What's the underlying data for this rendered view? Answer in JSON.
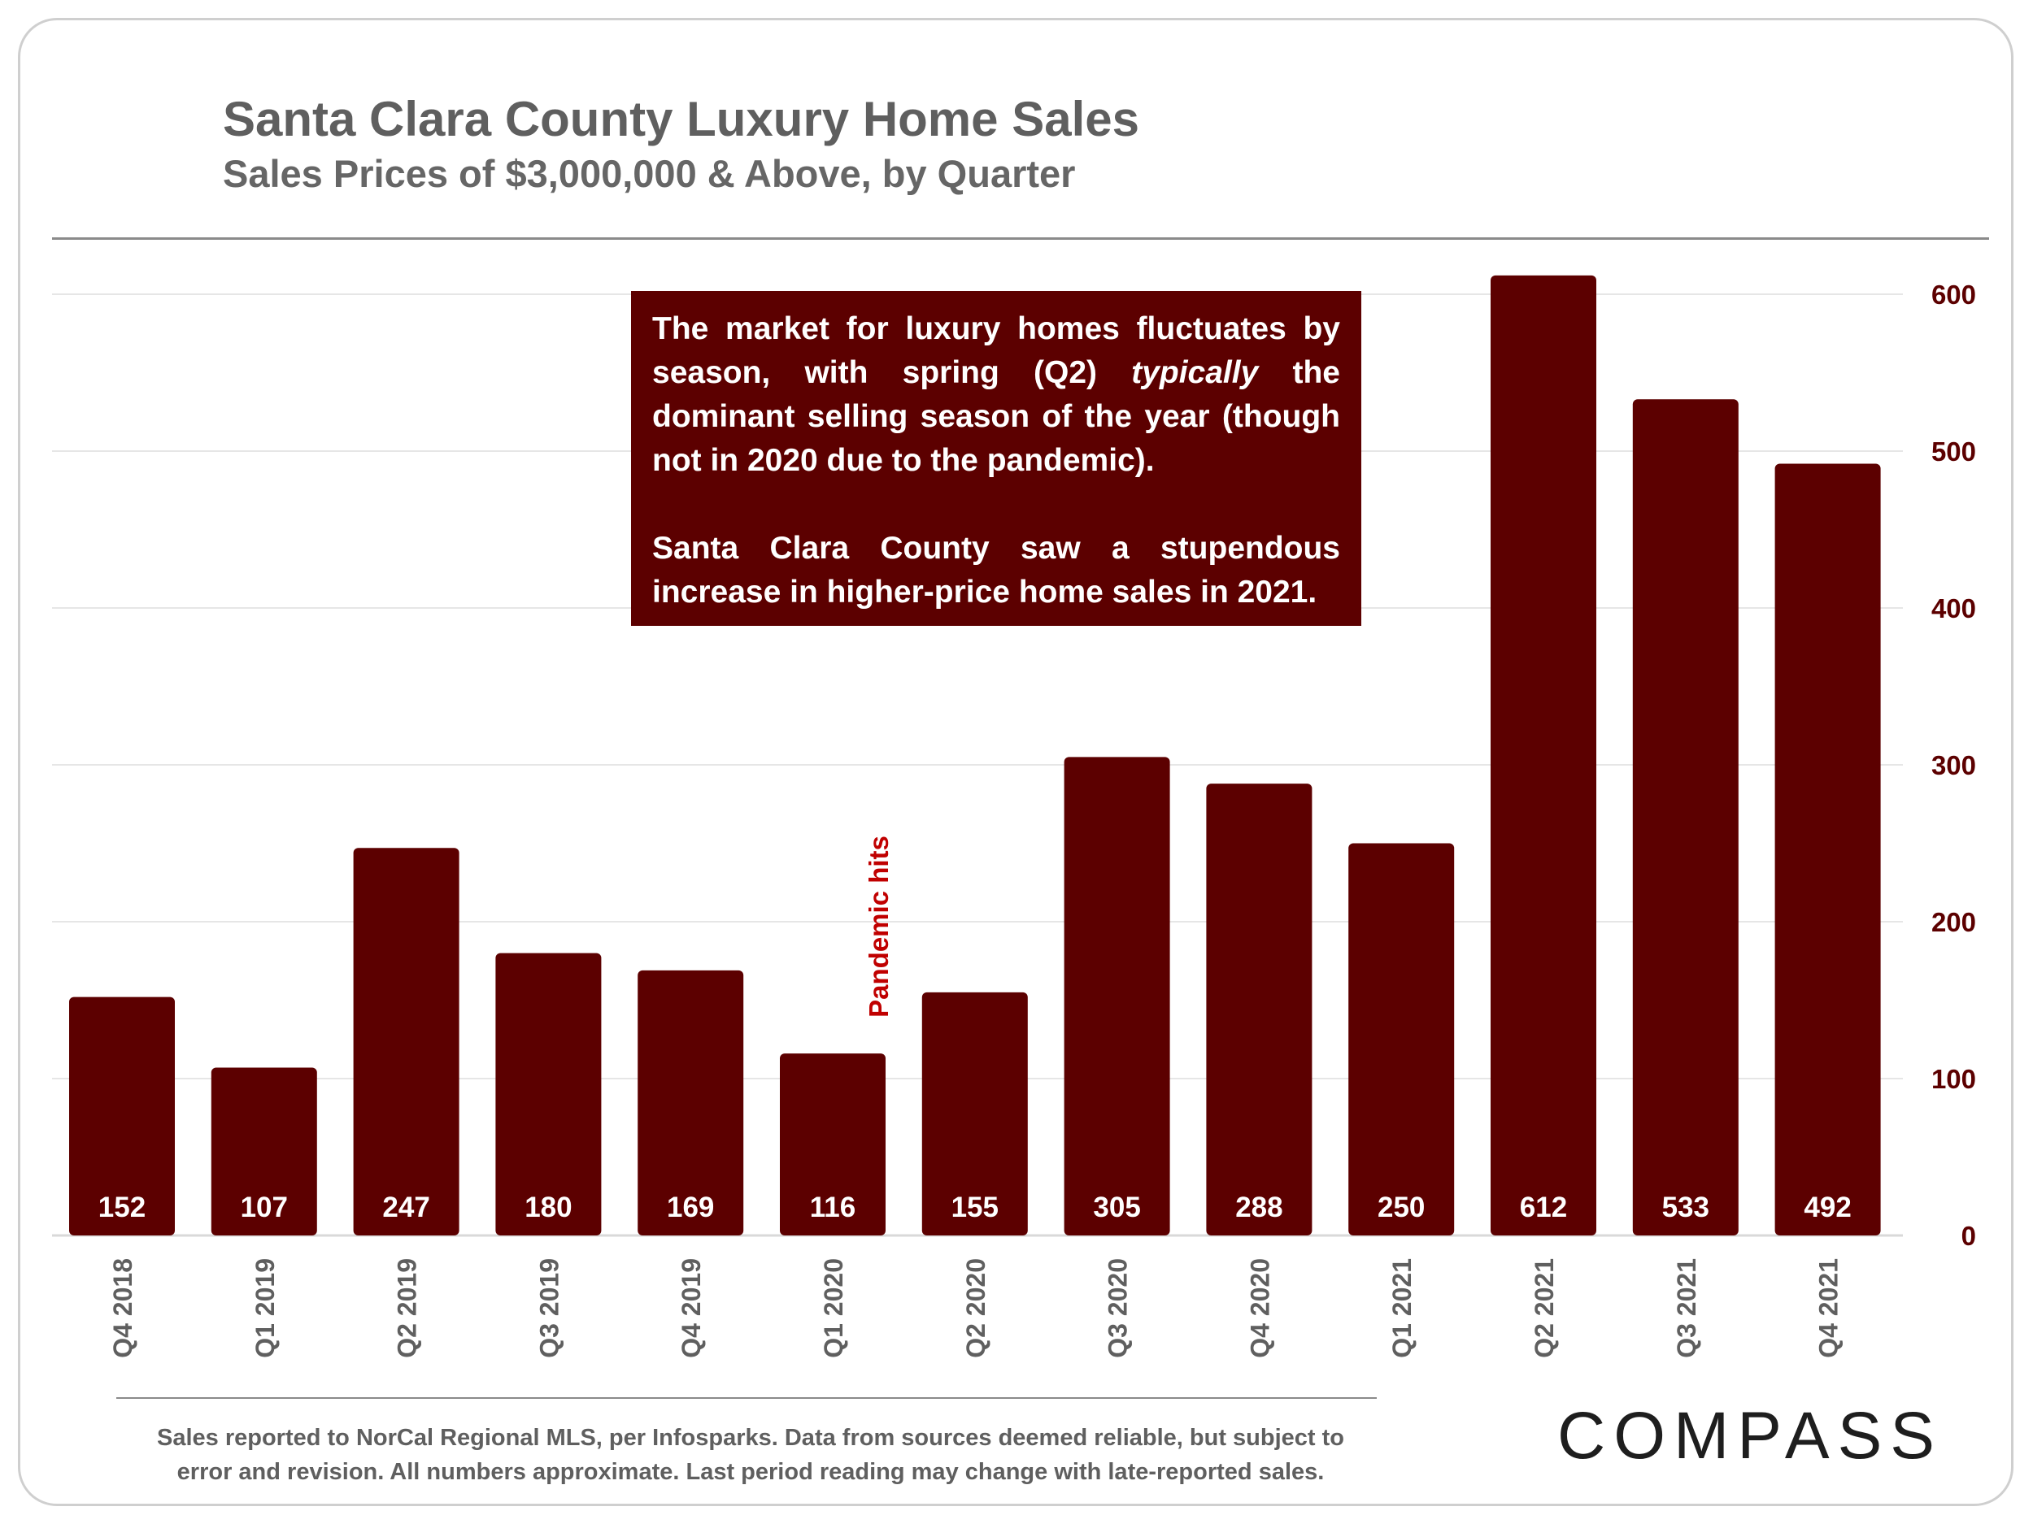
{
  "chart_data": {
    "type": "bar",
    "title": "Santa Clara County Luxury Home Sales",
    "subtitle": "Sales Prices of $3,000,000 & Above, by Quarter",
    "categories": [
      "Q4 2018",
      "Q1 2019",
      "Q2 2019",
      "Q3 2019",
      "Q4 2019",
      "Q1 2020",
      "Q2 2020",
      "Q3 2020",
      "Q4 2020",
      "Q1 2021",
      "Q2 2021",
      "Q3 2021",
      "Q4 2021"
    ],
    "values": [
      152,
      107,
      247,
      180,
      169,
      116,
      155,
      305,
      288,
      250,
      612,
      533,
      492
    ],
    "data_labels": [
      "152",
      "107",
      "247",
      "180",
      "169",
      "116",
      "155",
      "305",
      "288",
      "250",
      "612",
      "533",
      "492"
    ],
    "ylim": [
      0,
      600
    ],
    "y_ticks": [
      "0",
      "100",
      "200",
      "300",
      "400",
      "500",
      "600"
    ],
    "y_axis_side": "right",
    "grid": true,
    "bar_color": "#5c0000",
    "annotations": {
      "pandemic_label": "Pandemic hits",
      "callout_p1_before": "The market for luxury homes fluctuates by season, with spring (Q2) ",
      "callout_p1_em": "typically",
      "callout_p1_after": " the dominant selling season of the year (though not in 2020 due to the pandemic).",
      "callout_p2": "Santa Clara County saw a stupendous increase in higher-price home sales in 2021."
    }
  },
  "footnote": {
    "line1": "Sales reported to NorCal Regional MLS, per Infosparks. Data from sources deemed reliable, but subject to",
    "line2": "error and revision. All numbers approximate. Last period reading may change with late-reported sales."
  },
  "brand": {
    "logo_text": "COMPASS"
  },
  "colors": {
    "bar": "#5c0000",
    "axis_text": "#5c0000",
    "title": "#5f5f5f",
    "pandemic_text": "#c00000",
    "gridline": "#e6e6e6"
  }
}
